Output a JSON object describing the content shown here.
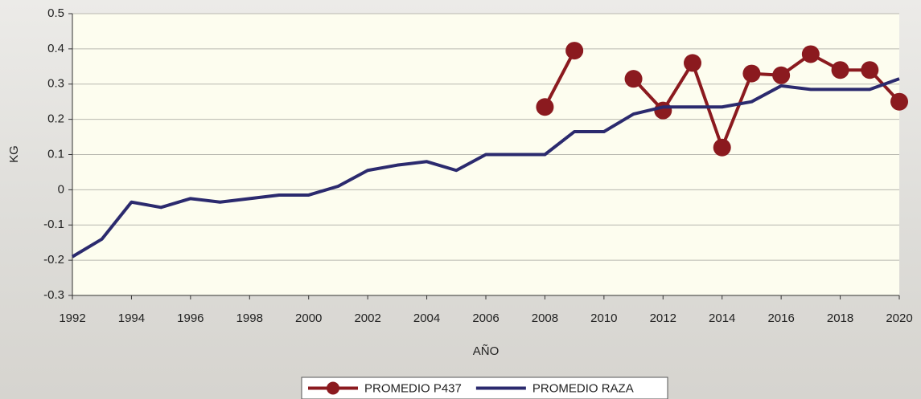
{
  "chart_data": {
    "type": "line",
    "xlabel": "AÑO",
    "ylabel": "KG",
    "x": [
      1992,
      1993,
      1994,
      1995,
      1996,
      1997,
      1998,
      1999,
      2000,
      2001,
      2002,
      2003,
      2004,
      2005,
      2006,
      2007,
      2008,
      2009,
      2010,
      2011,
      2012,
      2013,
      2014,
      2015,
      2016,
      2017,
      2018,
      2019,
      2020
    ],
    "series": [
      {
        "name": "PROMEDIO P437",
        "color": "#8b1a1f",
        "marker": true,
        "values": [
          null,
          null,
          null,
          null,
          null,
          null,
          null,
          null,
          null,
          null,
          null,
          null,
          null,
          null,
          null,
          null,
          0.235,
          0.395,
          null,
          0.315,
          0.225,
          0.36,
          0.12,
          0.33,
          0.325,
          0.385,
          0.34,
          0.34,
          0.25
        ]
      },
      {
        "name": "PROMEDIO RAZA",
        "color": "#2b2a6e",
        "marker": false,
        "values": [
          -0.19,
          -0.14,
          -0.035,
          -0.05,
          -0.025,
          -0.035,
          -0.025,
          -0.015,
          -0.015,
          0.01,
          0.055,
          0.07,
          0.08,
          0.055,
          0.1,
          0.1,
          0.1,
          0.165,
          0.165,
          0.215,
          0.235,
          0.235,
          0.235,
          0.25,
          0.295,
          0.285,
          0.285,
          0.285,
          0.315
        ]
      }
    ],
    "xlim": [
      1992,
      2020
    ],
    "xticks": [
      1992,
      1994,
      1996,
      1998,
      2000,
      2002,
      2004,
      2006,
      2008,
      2010,
      2012,
      2014,
      2016,
      2018,
      2020
    ],
    "ylim": [
      -0.3,
      0.5
    ],
    "yticks": [
      -0.3,
      -0.2,
      -0.1,
      0,
      0.1,
      0.2,
      0.3,
      0.4,
      0.5
    ],
    "grid": true,
    "legend": "bottom"
  }
}
